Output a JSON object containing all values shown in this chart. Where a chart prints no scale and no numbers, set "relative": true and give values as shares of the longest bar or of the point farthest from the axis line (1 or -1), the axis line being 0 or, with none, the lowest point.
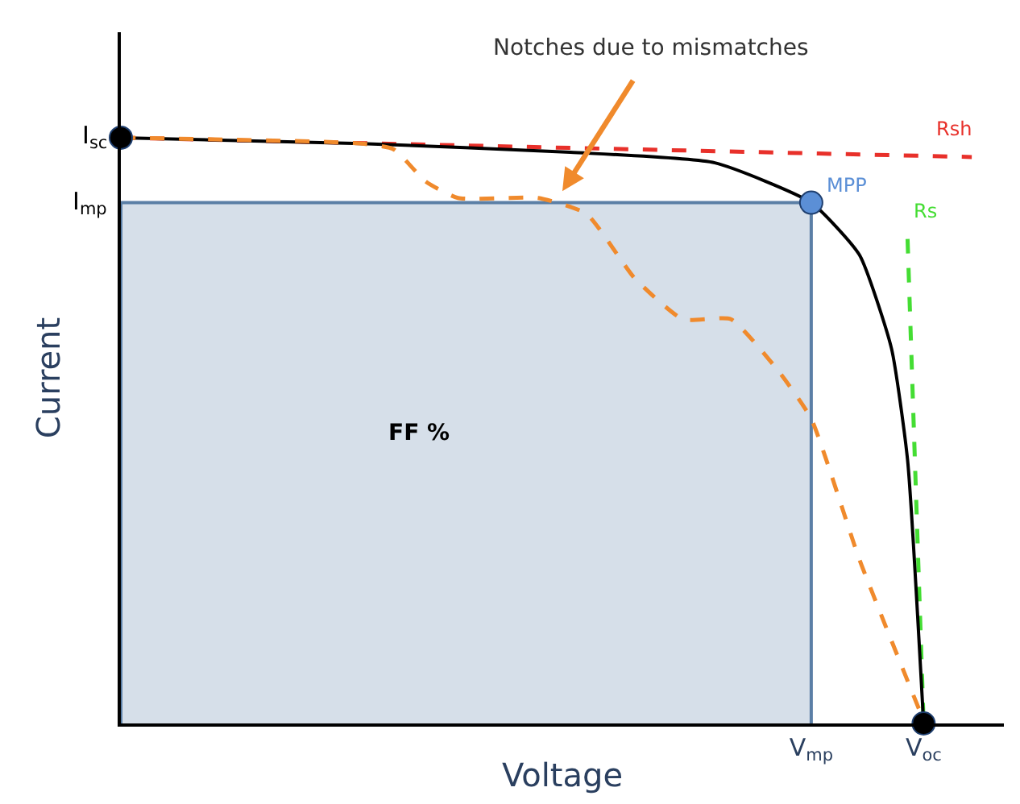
{
  "chart_data": {
    "type": "line",
    "relative": true,
    "xlabel": "Voltage",
    "ylabel": "Current",
    "legend": false,
    "categories": [
      null,
      null,
      null,
      null,
      null,
      null,
      null,
      null,
      null,
      null,
      null,
      null,
      null,
      null,
      null,
      null,
      null,
      null,
      null,
      null,
      null,
      null,
      null,
      null,
      null,
      null,
      null,
      null,
      null,
      null,
      null,
      null,
      null,
      null,
      null,
      null,
      null,
      null,
      null,
      null,
      null,
      null,
      null,
      "V$_{mp}$",
      null,
      null,
      null,
      null,
      null,
      null,
      "V$_{oc}$",
      null,
      null,
      null,
      null,
      null
    ],
    "series": [
      {
        "type": "area",
        "color": "#5b7fa6",
        "values": [
          0.889,
          null,
          null,
          null,
          null,
          null,
          null,
          null,
          null,
          null,
          null,
          null,
          null,
          null,
          null,
          null,
          null,
          null,
          null,
          null,
          null,
          null,
          null,
          null,
          null,
          null,
          null,
          null,
          null,
          null,
          null,
          null,
          null,
          null,
          null,
          null,
          null,
          null,
          null,
          null,
          null,
          null,
          null,
          0.889,
          null,
          null,
          null,
          null,
          null,
          null,
          null,
          null,
          null,
          null,
          null,
          null
        ]
      },
      {
        "name": "Rsh",
        "color": "#e8302a",
        "line_style": "dashed",
        "values": [
          1,
          null,
          null,
          null,
          null,
          null,
          null,
          null,
          null,
          null,
          null,
          null,
          null,
          null,
          null,
          null,
          null,
          null,
          null,
          null,
          null,
          null,
          null,
          null,
          null,
          null,
          null,
          null,
          null,
          null,
          null,
          null,
          null,
          null,
          null,
          null,
          null,
          null,
          null,
          null,
          null,
          null,
          null,
          null,
          null,
          null,
          null,
          null,
          null,
          null,
          null,
          null,
          null,
          0.967,
          null,
          null
        ]
      },
      {
        "name": "Rs",
        "color": "#44dd33",
        "line_style": "dashed",
        "values": [
          null,
          null,
          null,
          null,
          null,
          null,
          null,
          null,
          null,
          null,
          null,
          null,
          null,
          null,
          null,
          null,
          null,
          null,
          null,
          null,
          null,
          null,
          null,
          null,
          null,
          null,
          null,
          null,
          null,
          null,
          null,
          null,
          null,
          null,
          null,
          null,
          null,
          null,
          null,
          null,
          null,
          null,
          null,
          null,
          null,
          null,
          null,
          null,
          null,
          0.827,
          0,
          null,
          null,
          null,
          null,
          null
        ]
      },
      {
        "color": "#000000",
        "line_style": "solid",
        "values": [
          1,
          null,
          null,
          null,
          null,
          null,
          null,
          null,
          null,
          null,
          null,
          null,
          null,
          null,
          null,
          0.99,
          null,
          null,
          null,
          null,
          null,
          null,
          null,
          null,
          null,
          null,
          null,
          null,
          0.975,
          null,
          null,
          null,
          null,
          null,
          null,
          null,
          null,
          0.957,
          null,
          null,
          null,
          null,
          null,
          0.889,
          null,
          null,
          0.8,
          null,
          0.64,
          0.45,
          0,
          null,
          null,
          null,
          null,
          null
        ]
      },
      {
        "color": "#f08a2c",
        "line_style": "dashed",
        "values": [
          1,
          null,
          null,
          null,
          null,
          null,
          null,
          null,
          null,
          null,
          null,
          null,
          null,
          null,
          null,
          0.99,
          null,
          0.98,
          null,
          0.925,
          null,
          0.897,
          null,
          null,
          null,
          null,
          0.897,
          null,
          null,
          0.87,
          null,
          null,
          0.76,
          null,
          null,
          0.69,
          null,
          null,
          0.69,
          null,
          null,
          0.6,
          null,
          0.52,
          null,
          null,
          0.28,
          null,
          null,
          null,
          0.005,
          null,
          null,
          null,
          null,
          null
        ]
      },
      {
        "type": "scatter",
        "name": "MPP",
        "color": "#5b8fd6",
        "marker": "circle",
        "values": [
          null,
          null,
          null,
          null,
          null,
          null,
          null,
          null,
          null,
          null,
          null,
          null,
          null,
          null,
          null,
          null,
          null,
          null,
          null,
          null,
          null,
          null,
          null,
          null,
          null,
          null,
          null,
          null,
          null,
          null,
          null,
          null,
          null,
          null,
          null,
          null,
          null,
          null,
          null,
          null,
          null,
          null,
          null,
          0.889,
          null,
          null,
          null,
          null,
          null,
          null,
          null,
          null,
          null,
          null,
          null,
          null
        ]
      },
      {
        "type": "scatter",
        "color": "#000000",
        "marker": "circle",
        "values": [
          1,
          null,
          null,
          null,
          null,
          null,
          null,
          null,
          null,
          null,
          null,
          null,
          null,
          null,
          null,
          null,
          null,
          null,
          null,
          null,
          null,
          null,
          null,
          null,
          null,
          null,
          null,
          null,
          null,
          null,
          null,
          null,
          null,
          null,
          null,
          null,
          null,
          null,
          null,
          null,
          null,
          null,
          null,
          null,
          null,
          null,
          null,
          null,
          null,
          null,
          0,
          null,
          null,
          null,
          null,
          null
        ]
      }
    ],
    "annotations": [
      "I$_{sc}$",
      "I$_{mp}$",
      "FF %",
      "Notches due to mismatches"
    ]
  }
}
